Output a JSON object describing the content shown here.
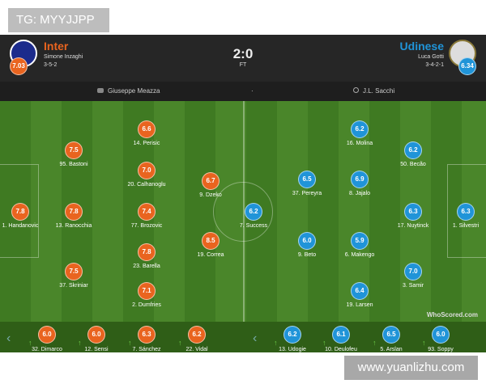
{
  "watermark_tl": "TG: MYYJJPP",
  "watermark_br": "www.yuanlizhu.com",
  "home": {
    "name": "Inter",
    "manager": "Simone Inzaghi",
    "formation": "3-5-2",
    "rating": "7.03",
    "color": "#e9641f",
    "players": [
      {
        "n": "1. Handanovic",
        "r": "7.8"
      },
      {
        "n": "95. Bastoni",
        "r": "7.5"
      },
      {
        "n": "13. Ranocchia",
        "r": "7.8"
      },
      {
        "n": "37. Skriniar",
        "r": "7.5"
      },
      {
        "n": "14. Perisic",
        "r": "6.6"
      },
      {
        "n": "20. Calhanoglu",
        "r": "7.0"
      },
      {
        "n": "77. Brozovic",
        "r": "7.4"
      },
      {
        "n": "23. Barella",
        "r": "7.8"
      },
      {
        "n": "2. Dumfries",
        "r": "7.1"
      },
      {
        "n": "9. Dzeko",
        "r": "6.7"
      },
      {
        "n": "19. Correa",
        "r": "8.5"
      }
    ],
    "subs": [
      {
        "n": "32. Dimarco",
        "r": "6.0"
      },
      {
        "n": "12. Sensi",
        "r": "6.0"
      },
      {
        "n": "7. Sánchez",
        "r": "6.3"
      },
      {
        "n": "22. Vidal",
        "r": "6.2"
      }
    ]
  },
  "away": {
    "name": "Udinese",
    "manager": "Luca Gotti",
    "formation": "3-4-2-1",
    "rating": "6.34",
    "color": "#2094d8",
    "players": [
      {
        "n": "1. Silvestri",
        "r": "6.3"
      },
      {
        "n": "50. Becão",
        "r": "6.2"
      },
      {
        "n": "17. Nuytinck",
        "r": "6.3"
      },
      {
        "n": "3. Samir",
        "r": "7.0"
      },
      {
        "n": "16. Molina",
        "r": "6.2"
      },
      {
        "n": "8. Jajalo",
        "r": "6.9"
      },
      {
        "n": "6. Makengo",
        "r": "5.9"
      },
      {
        "n": "19. Larsen",
        "r": "6.4"
      },
      {
        "n": "37. Pereyra",
        "r": "6.5"
      },
      {
        "n": "9. Beto",
        "r": "6.0"
      },
      {
        "n": "7. Success",
        "r": "6.2"
      }
    ],
    "subs": [
      {
        "n": "13. Udogie",
        "r": "6.2"
      },
      {
        "n": "10. Deulofeu",
        "r": "6.1"
      },
      {
        "n": "5. Arslan",
        "r": "6.5"
      },
      {
        "n": "93. Soppy",
        "r": "6.0"
      }
    ]
  },
  "score": "2:0",
  "status": "FT",
  "stadium": "Giuseppe Meazza",
  "separator": "·",
  "referee": "J.L. Sacchi",
  "brand": "WhoScored.com"
}
